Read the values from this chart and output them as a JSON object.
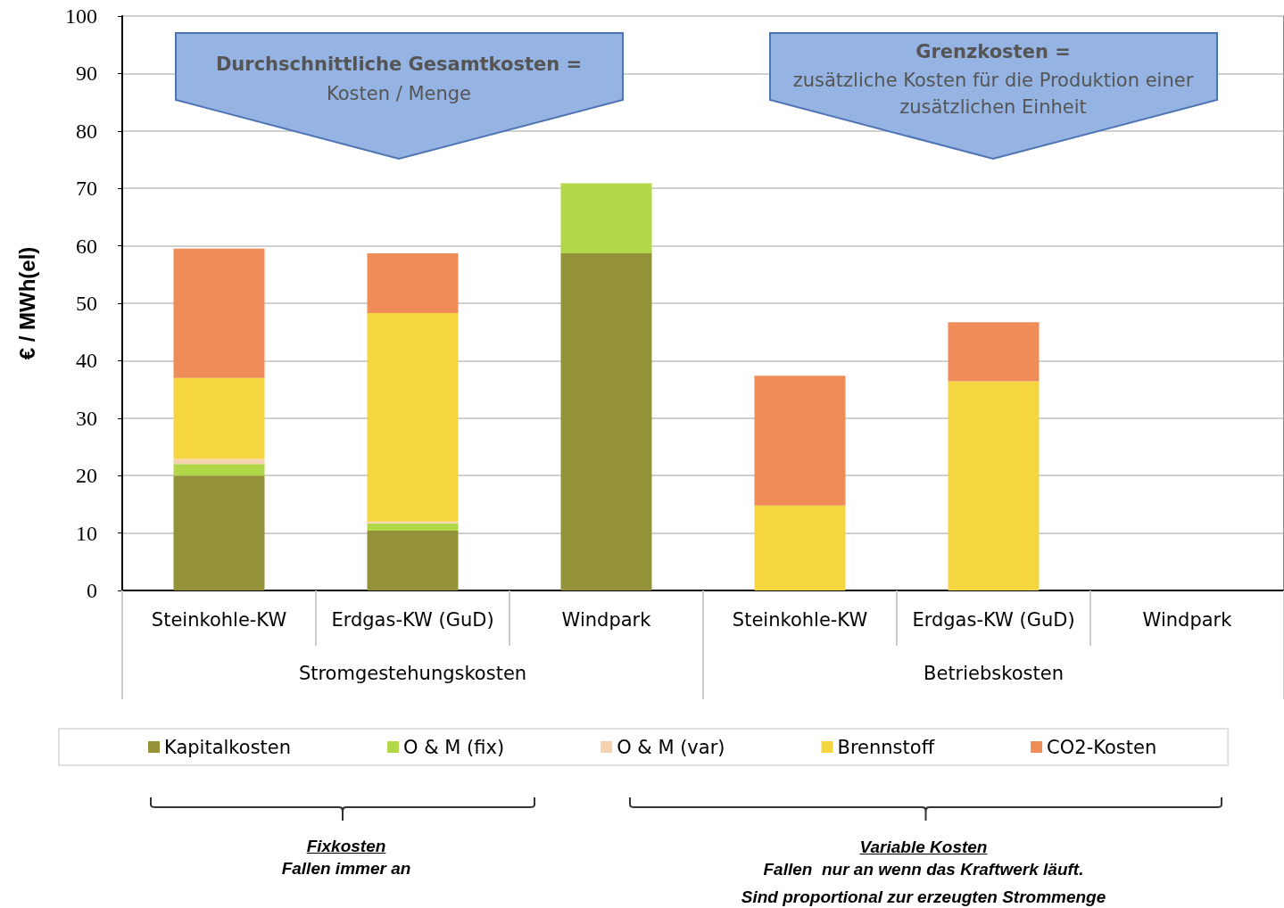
{
  "chart_data": {
    "type": "bar",
    "stacked": true,
    "ylabel": "€ / MWh(el)",
    "categories": [
      "Steinkohle-KW",
      "Erdgas-KW (GuD)",
      "Windpark",
      "Steinkohle-KW",
      "Erdgas-KW (GuD)",
      "Windpark"
    ],
    "series": [
      {
        "name": "Kapitalkosten",
        "color": "#939239",
        "values": [
          20.0,
          10.4,
          58.7,
          0,
          0,
          0
        ]
      },
      {
        "name": "O & M (fix)",
        "color": "#b2d84a",
        "values": [
          2.0,
          1.3,
          12.2,
          0,
          0,
          0
        ]
      },
      {
        "name": "O & M (var)",
        "color": "#f6d2b0",
        "values": [
          0.9,
          0.3,
          0,
          0,
          0,
          0
        ]
      },
      {
        "name": "Brennstoff",
        "color": "#f5d540",
        "values": [
          14.1,
          36.3,
          0,
          14.8,
          36.4,
          0
        ]
      },
      {
        "name": "CO2-Kosten",
        "color": "#f08c58",
        "values": [
          22.5,
          10.4,
          0,
          22.6,
          10.3,
          0
        ]
      }
    ],
    "ylim": [
      0,
      100
    ],
    "yticks": [
      0,
      10,
      20,
      30,
      40,
      50,
      60,
      70,
      80,
      90,
      100
    ],
    "grid": "y",
    "legend": "bottom",
    "annotations": [
      "Durchschnittliche Gesamtkosten =",
      "Kosten / Menge",
      "Grenzkosten =",
      "zusätzliche Kosten für die Produktion einer",
      "zusätzlichen Einheit",
      "Stromgestehungskosten",
      "Betriebskosten",
      "Fixkosten",
      "Fallen immer an",
      "Variable Kosten",
      "Fallen  nur an wenn das Kraftwerk läuft.",
      "Sind proportional zur erzeugten Strommenge"
    ]
  }
}
